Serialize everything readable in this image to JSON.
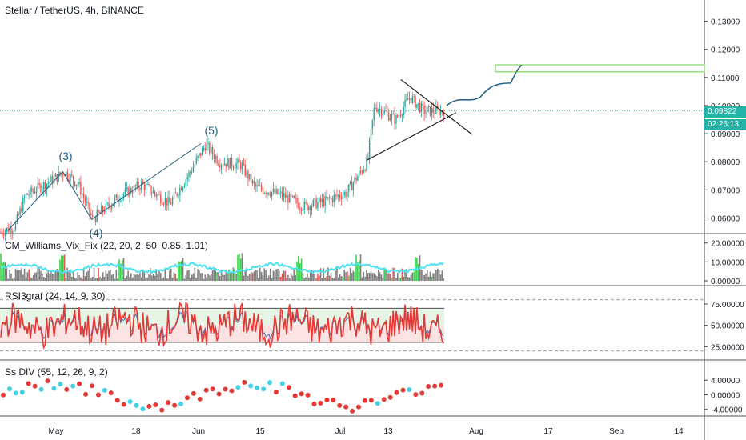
{
  "header": {
    "title": "Stellar / TetherUS, 4h, BINANCE"
  },
  "price_tag": {
    "value": "0.09822",
    "timer": "02:26:13",
    "color": "#23b3a7"
  },
  "colors": {
    "up": "#26a69a",
    "down": "#ef5350",
    "wave": "#1e5f80",
    "rsi": "#e53935",
    "vix_line": "#4de2f0",
    "vix_bar": "#808080",
    "vix_green": "#3ece4e",
    "target_box": "#66cc44"
  },
  "chart_data": [
    {
      "type": "candlestick",
      "symbol": "Stellar / TetherUS",
      "interval": "4h",
      "exchange": "BINANCE",
      "ylim": [
        0.055,
        0.137
      ],
      "yticks": [
        "0.13000",
        "0.12000",
        "0.11000",
        "0.10000",
        "0.09000",
        "0.08000",
        "0.07000",
        "0.06000"
      ],
      "xticks": [
        "May",
        "18",
        "Jun",
        "15",
        "Jul",
        "13",
        "Aug",
        "17",
        "Sep",
        "14"
      ],
      "price_path": [
        [
          0,
          0.055
        ],
        [
          0.02,
          0.057
        ],
        [
          0.035,
          0.068
        ],
        [
          0.07,
          0.073
        ],
        [
          0.09,
          0.0765
        ],
        [
          0.11,
          0.072
        ],
        [
          0.13,
          0.0595
        ],
        [
          0.17,
          0.068
        ],
        [
          0.2,
          0.072
        ],
        [
          0.24,
          0.065
        ],
        [
          0.27,
          0.077
        ],
        [
          0.29,
          0.086
        ],
        [
          0.31,
          0.08
        ],
        [
          0.34,
          0.079
        ],
        [
          0.36,
          0.071
        ],
        [
          0.4,
          0.068
        ],
        [
          0.43,
          0.064
        ],
        [
          0.46,
          0.066
        ],
        [
          0.49,
          0.069
        ],
        [
          0.52,
          0.08
        ],
        [
          0.53,
          0.1
        ],
        [
          0.56,
          0.095
        ],
        [
          0.58,
          0.103
        ],
        [
          0.6,
          0.098
        ],
        [
          0.63,
          0.098
        ]
      ],
      "wave_labels": [
        "(3)",
        "(4)",
        "(5)"
      ],
      "current_price": 0.09822,
      "projection_target_zone": [
        0.112,
        0.1145
      ]
    },
    {
      "type": "bar",
      "name": "CM_Williams_Vix_Fix (22, 20, 2, 50, 0.85, 1.01)",
      "ylim": [
        0,
        22
      ],
      "yticks": [
        "20.00000",
        "10.00000",
        "0.00000"
      ]
    },
    {
      "type": "line",
      "name": "RSI3graf (24, 14, 9, 30)",
      "ylim": [
        15,
        90
      ],
      "yticks": [
        "75.00000",
        "50.00000",
        "25.00000"
      ],
      "bands": [
        30,
        70
      ]
    },
    {
      "type": "scatter",
      "name": "Ss DIV (55, 12, 26, 9, 2)",
      "ylim": [
        -4.5,
        8
      ],
      "yticks": [
        "4.00000",
        "0.00000",
        "-4.00000"
      ]
    }
  ]
}
